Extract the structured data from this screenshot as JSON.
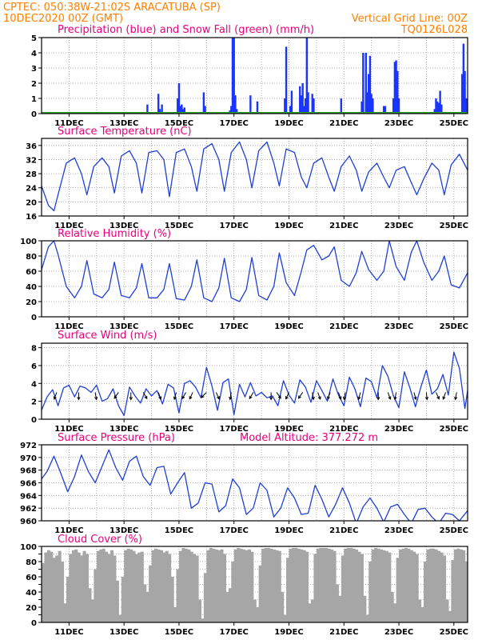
{
  "header": {
    "line1_left": "CPTEC:   050:38W-21:02S   ARACATUBA (SP)",
    "line2_left": "10DEC2020 00Z (GMT)",
    "line2_right": "Vertical Grid Line: 00Z",
    "line3_right": "TQ0126L028"
  },
  "colors": {
    "header": "#ff7f00",
    "title": "#e8007d",
    "precip": "#1a35ff",
    "snow": "#2ca02c",
    "line": "#1f3fd6",
    "wind_arrow": "#000000",
    "cloud": "#a6a6a6",
    "grid": "#9a9a9a"
  },
  "chart_data": [
    {
      "id": "precip",
      "type": "bar",
      "title": "Precipitation (blue) and Snow Fall (green) (mm/h)",
      "ylim": [
        0,
        5
      ],
      "yticks": [
        0,
        1,
        2,
        3,
        4,
        5
      ],
      "xlim": [
        10,
        25.5
      ],
      "xticks": [
        "11DEC",
        "13DEC",
        "15DEC",
        "17DEC",
        "19DEC",
        "21DEC",
        "23DEC",
        "25DEC"
      ],
      "grid": true,
      "series": [
        {
          "name": "Precipitation",
          "x": [
            13.85,
            14.25,
            14.3,
            14.38,
            14.95,
            15.0,
            15.05,
            15.1,
            15.15,
            15.2,
            15.9,
            15.95,
            16.85,
            16.9,
            16.95,
            17.0,
            17.05,
            17.1,
            17.6,
            17.85,
            18.85,
            18.9,
            19.05,
            19.1,
            19.4,
            19.45,
            19.5,
            19.55,
            19.6,
            19.65,
            19.7,
            19.85,
            19.9,
            20.9,
            21.65,
            21.7,
            21.8,
            21.85,
            21.9,
            21.95,
            22.0,
            22.05,
            22.45,
            22.5,
            22.8,
            22.85,
            22.9,
            22.95,
            23.0,
            24.3,
            24.35,
            24.4,
            24.45,
            24.5,
            24.55,
            25.3,
            25.35,
            25.4,
            25.45,
            25.5
          ],
          "values": [
            0.6,
            1.3,
            0.3,
            0.6,
            1.0,
            2.0,
            0.5,
            0.6,
            0.3,
            0.4,
            1.4,
            0.5,
            0.2,
            0.5,
            5.0,
            5.0,
            1.2,
            0.3,
            1.2,
            0.8,
            1.0,
            4.4,
            0.5,
            1.5,
            1.8,
            1.2,
            2.0,
            0.5,
            1.0,
            5.0,
            1.4,
            1.3,
            1.0,
            1.0,
            0.8,
            4.0,
            4.0,
            1.4,
            2.6,
            3.8,
            1.3,
            1.0,
            0.5,
            0.5,
            1.0,
            3.4,
            3.5,
            2.8,
            1.0,
            0.3,
            1.0,
            0.8,
            0.7,
            1.5,
            0.6,
            2.6,
            4.6,
            2.8,
            1.0,
            0.3
          ]
        },
        {
          "name": "Snow Fall",
          "constant": 0.05
        }
      ]
    },
    {
      "id": "temp",
      "type": "line",
      "title": "Surface Temperature (nC)",
      "ylim": [
        16,
        38
      ],
      "yticks": [
        16,
        20,
        24,
        28,
        32,
        36
      ],
      "xlim": [
        10,
        25.5
      ],
      "xticks": [
        "11DEC",
        "13DEC",
        "15DEC",
        "17DEC",
        "19DEC",
        "21DEC",
        "23DEC",
        "25DEC"
      ],
      "grid": true,
      "x": [
        10.0,
        10.25,
        10.45,
        10.6,
        10.9,
        11.2,
        11.45,
        11.65,
        11.9,
        12.2,
        12.45,
        12.65,
        12.9,
        13.2,
        13.45,
        13.65,
        13.9,
        14.2,
        14.45,
        14.65,
        14.9,
        15.2,
        15.45,
        15.65,
        15.9,
        16.2,
        16.45,
        16.65,
        16.9,
        17.2,
        17.45,
        17.65,
        17.9,
        18.2,
        18.45,
        18.65,
        18.9,
        19.2,
        19.45,
        19.65,
        19.9,
        20.2,
        20.45,
        20.65,
        20.9,
        21.2,
        21.45,
        21.65,
        21.9,
        22.2,
        22.45,
        22.65,
        22.9,
        23.2,
        23.45,
        23.65,
        23.9,
        24.2,
        24.45,
        24.65,
        24.9,
        25.2,
        25.5
      ],
      "values": [
        24.5,
        19.0,
        17.5,
        22.0,
        31.0,
        32.5,
        28.0,
        22.0,
        30.0,
        32.5,
        30.0,
        22.5,
        33.0,
        34.5,
        31.0,
        22.5,
        34.0,
        34.5,
        32.0,
        21.5,
        34.0,
        35.0,
        30.0,
        23.0,
        35.0,
        36.5,
        32.0,
        23.0,
        34.0,
        37.0,
        32.0,
        24.0,
        34.5,
        37.0,
        31.0,
        24.5,
        35.0,
        34.0,
        27.0,
        24.0,
        31.0,
        32.5,
        27.0,
        23.0,
        30.0,
        33.0,
        29.0,
        23.0,
        28.5,
        31.0,
        27.0,
        24.0,
        29.0,
        30.0,
        25.5,
        22.0,
        26.5,
        31.0,
        29.0,
        22.0,
        30.5,
        33.5,
        29.0
      ]
    },
    {
      "id": "rh",
      "type": "line",
      "title": "Relative Humidity (%)",
      "ylim": [
        0,
        100
      ],
      "yticks": [
        0,
        20,
        40,
        60,
        80,
        100
      ],
      "xlim": [
        10,
        25.5
      ],
      "xticks": [
        "11DEC",
        "13DEC",
        "15DEC",
        "17DEC",
        "19DEC",
        "21DEC",
        "23DEC",
        "25DEC"
      ],
      "grid": true,
      "x": [
        10.0,
        10.25,
        10.45,
        10.6,
        10.9,
        11.2,
        11.45,
        11.65,
        11.9,
        12.2,
        12.45,
        12.65,
        12.9,
        13.2,
        13.45,
        13.65,
        13.9,
        14.2,
        14.45,
        14.65,
        14.9,
        15.2,
        15.45,
        15.65,
        15.9,
        16.2,
        16.45,
        16.65,
        16.9,
        17.2,
        17.45,
        17.65,
        17.9,
        18.2,
        18.45,
        18.65,
        18.9,
        19.2,
        19.45,
        19.65,
        19.9,
        20.2,
        20.45,
        20.65,
        20.9,
        21.2,
        21.45,
        21.65,
        21.9,
        22.2,
        22.45,
        22.65,
        22.9,
        23.2,
        23.45,
        23.65,
        23.9,
        24.2,
        24.45,
        24.65,
        24.9,
        25.2,
        25.5
      ],
      "values": [
        62,
        92,
        100,
        82,
        40,
        25,
        40,
        74,
        30,
        25,
        36,
        72,
        28,
        25,
        38,
        70,
        25,
        25,
        36,
        70,
        24,
        22,
        40,
        75,
        25,
        20,
        38,
        77,
        25,
        20,
        36,
        78,
        28,
        22,
        40,
        84,
        45,
        28,
        60,
        88,
        94,
        75,
        80,
        92,
        48,
        40,
        58,
        86,
        62,
        48,
        60,
        100,
        66,
        48,
        85,
        100,
        72,
        48,
        60,
        80,
        42,
        38,
        58
      ]
    },
    {
      "id": "wind",
      "type": "line",
      "title": "Surface Wind (m/s)",
      "ylim": [
        0,
        8.5
      ],
      "yticks": [
        0,
        2,
        4,
        6,
        8
      ],
      "xlim": [
        10,
        25.5
      ],
      "xticks": [
        "11DEC",
        "13DEC",
        "15DEC",
        "17DEC",
        "19DEC",
        "21DEC",
        "23DEC",
        "25DEC"
      ],
      "grid": true,
      "x": [
        10.0,
        10.2,
        10.4,
        10.6,
        10.8,
        11.0,
        11.2,
        11.4,
        11.6,
        11.8,
        12.0,
        12.2,
        12.4,
        12.6,
        12.8,
        13.0,
        13.2,
        13.4,
        13.6,
        13.8,
        14.0,
        14.2,
        14.4,
        14.6,
        14.8,
        15.0,
        15.2,
        15.4,
        15.6,
        15.8,
        16.0,
        16.2,
        16.4,
        16.6,
        16.8,
        17.0,
        17.2,
        17.4,
        17.6,
        17.8,
        18.0,
        18.2,
        18.4,
        18.6,
        18.8,
        19.0,
        19.2,
        19.4,
        19.6,
        19.8,
        20.0,
        20.2,
        20.4,
        20.6,
        20.8,
        21.0,
        21.2,
        21.4,
        21.6,
        21.8,
        22.0,
        22.2,
        22.4,
        22.6,
        22.8,
        23.0,
        23.2,
        23.4,
        23.6,
        23.8,
        24.0,
        24.2,
        24.4,
        24.6,
        24.8,
        25.0,
        25.2,
        25.4,
        25.5
      ],
      "values": [
        1.0,
        2.5,
        3.3,
        1.5,
        3.5,
        3.8,
        2.5,
        3.7,
        3.5,
        3.0,
        3.8,
        2.0,
        2.3,
        3.4,
        1.5,
        0.4,
        3.6,
        2.6,
        1.8,
        3.4,
        2.6,
        3.2,
        1.7,
        3.9,
        3.5,
        0.7,
        4.0,
        4.3,
        3.6,
        2.4,
        5.8,
        3.7,
        1.0,
        4.1,
        4.5,
        0.5,
        3.9,
        2.5,
        4.1,
        2.6,
        3.0,
        2.4,
        2.6,
        1.5,
        4.3,
        2.7,
        1.8,
        4.4,
        3.6,
        1.9,
        4.3,
        3.2,
        2.0,
        4.5,
        2.7,
        1.5,
        4.7,
        3.4,
        1.4,
        4.6,
        4.2,
        2.4,
        6.0,
        4.8,
        2.6,
        1.3,
        5.3,
        3.5,
        1.4,
        3.6,
        5.5,
        2.8,
        3.4,
        5.0,
        2.7,
        7.5,
        5.7,
        1.2,
        3.2
      ],
      "arrows_x": [
        10.55,
        11.35,
        11.95,
        12.8,
        13.25,
        13.7,
        14.25,
        14.9,
        15.25,
        15.5,
        16.0,
        16.35,
        16.9,
        17.7,
        18.35,
        18.55,
        19.0,
        19.5,
        19.85,
        20.05,
        20.5,
        20.8,
        21.05,
        21.6,
        22.25,
        22.6,
        22.9,
        23.55,
        24.0,
        24.35,
        24.7,
        25.1,
        25.5
      ],
      "arrows_dir_deg": [
        200,
        180,
        170,
        215,
        180,
        150,
        160,
        195,
        210,
        205,
        225,
        155,
        190,
        210,
        180,
        145,
        205,
        215,
        170,
        160,
        200,
        160,
        190,
        195,
        180,
        160,
        190,
        165,
        175,
        155,
        200,
        190,
        170
      ]
    },
    {
      "id": "pressure",
      "type": "line",
      "title": "Surface Pressure (hPa)",
      "subtitle": "Model Altitude: 377.272 m",
      "ylim": [
        960,
        972
      ],
      "yticks": [
        960,
        962,
        964,
        966,
        968,
        970,
        972
      ],
      "xlim": [
        10,
        25.5
      ],
      "xticks": [
        "11DEC",
        "13DEC",
        "15DEC",
        "17DEC",
        "19DEC",
        "21DEC",
        "23DEC",
        "25DEC"
      ],
      "grid": true,
      "x": [
        10.0,
        10.2,
        10.45,
        10.7,
        10.95,
        11.2,
        11.45,
        11.7,
        11.95,
        12.2,
        12.45,
        12.7,
        12.95,
        13.2,
        13.45,
        13.7,
        13.95,
        14.2,
        14.45,
        14.7,
        14.95,
        15.2,
        15.45,
        15.7,
        15.95,
        16.2,
        16.45,
        16.7,
        16.95,
        17.2,
        17.45,
        17.7,
        17.95,
        18.2,
        18.45,
        18.7,
        18.95,
        19.2,
        19.45,
        19.7,
        19.95,
        20.2,
        20.45,
        20.7,
        20.95,
        21.2,
        21.45,
        21.7,
        21.95,
        22.2,
        22.45,
        22.7,
        22.95,
        23.2,
        23.45,
        23.7,
        23.95,
        24.2,
        24.45,
        24.7,
        24.95,
        25.2,
        25.5
      ],
      "values": [
        966.6,
        967.8,
        970.2,
        967.5,
        964.6,
        967.0,
        970.4,
        967.8,
        966.0,
        968.6,
        971.2,
        968.4,
        966.4,
        969.4,
        970.2,
        967.0,
        965.6,
        968.4,
        968.6,
        964.2,
        966.0,
        967.6,
        962.0,
        962.8,
        966.0,
        965.8,
        961.4,
        962.4,
        966.6,
        965.2,
        961.0,
        962.0,
        966.0,
        964.8,
        960.6,
        962.0,
        965.2,
        963.6,
        961.0,
        961.2,
        965.6,
        963.4,
        960.6,
        962.6,
        965.2,
        962.8,
        959.6,
        962.2,
        963.6,
        962.0,
        959.8,
        962.2,
        962.6,
        961.0,
        959.6,
        961.8,
        962.0,
        960.6,
        959.6,
        961.2,
        961.0,
        960.0,
        961.6
      ]
    },
    {
      "id": "cloud",
      "type": "area",
      "title": "Cloud Cover (%)",
      "ylim": [
        0,
        100
      ],
      "yticks": [
        0,
        10,
        20,
        30,
        40,
        50,
        60,
        70,
        80,
        90,
        100
      ],
      "ytick_labels": [
        "0",
        "",
        "20",
        "",
        "40",
        "",
        "60",
        "",
        "80",
        "",
        "100"
      ],
      "xlim": [
        10,
        25.5
      ],
      "xticks": [
        "11DEC",
        "13DEC",
        "15DEC",
        "17DEC",
        "19DEC",
        "21DEC",
        "23DEC",
        "25DEC"
      ],
      "grid": true,
      "x": [
        10.0,
        10.1,
        10.2,
        10.3,
        10.4,
        10.5,
        10.6,
        10.7,
        10.8,
        10.9,
        11.0,
        11.1,
        11.2,
        11.3,
        11.4,
        11.5,
        11.6,
        11.7,
        11.8,
        11.9,
        12.0,
        12.1,
        12.2,
        12.3,
        12.4,
        12.5,
        12.6,
        12.7,
        12.8,
        12.9,
        13.0,
        13.1,
        13.2,
        13.3,
        13.4,
        13.5,
        13.6,
        13.7,
        13.8,
        13.9,
        14.0,
        14.1,
        14.2,
        14.3,
        14.4,
        14.5,
        14.6,
        14.7,
        14.8,
        14.9,
        15.0,
        15.1,
        15.2,
        15.3,
        15.4,
        15.5,
        15.6,
        15.7,
        15.8,
        15.9,
        16.0,
        16.1,
        16.2,
        16.3,
        16.4,
        16.5,
        16.6,
        16.7,
        16.8,
        16.9,
        17.0,
        17.1,
        17.2,
        17.3,
        17.4,
        17.5,
        17.6,
        17.7,
        17.8,
        17.9,
        18.0,
        18.1,
        18.2,
        18.3,
        18.4,
        18.5,
        18.6,
        18.7,
        18.8,
        18.9,
        19.0,
        19.1,
        19.2,
        19.3,
        19.4,
        19.5,
        19.6,
        19.7,
        19.8,
        19.9,
        20.0,
        20.1,
        20.2,
        20.3,
        20.4,
        20.5,
        20.6,
        20.7,
        20.8,
        20.9,
        21.0,
        21.1,
        21.2,
        21.3,
        21.4,
        21.5,
        21.6,
        21.7,
        21.8,
        21.9,
        22.0,
        22.1,
        22.2,
        22.3,
        22.4,
        22.5,
        22.6,
        22.7,
        22.8,
        22.9,
        23.0,
        23.1,
        23.2,
        23.3,
        23.4,
        23.5,
        23.6,
        23.7,
        23.8,
        23.9,
        24.0,
        24.1,
        24.2,
        24.3,
        24.4,
        24.5,
        24.6,
        24.7,
        24.8,
        24.9,
        25.0,
        25.1,
        25.2,
        25.3,
        25.4,
        25.5
      ],
      "values": [
        78,
        92,
        95,
        93,
        85,
        88,
        94,
        80,
        25,
        60,
        90,
        95,
        96,
        92,
        88,
        94,
        90,
        45,
        30,
        70,
        94,
        96,
        97,
        93,
        90,
        95,
        88,
        55,
        10,
        60,
        95,
        97,
        96,
        94,
        90,
        92,
        93,
        50,
        40,
        75,
        95,
        97,
        96,
        95,
        92,
        94,
        90,
        60,
        20,
        70,
        94,
        98,
        97,
        96,
        93,
        90,
        88,
        30,
        5,
        65,
        95,
        98,
        97,
        96,
        95,
        96,
        90,
        40,
        45,
        80,
        96,
        98,
        97,
        96,
        95,
        96,
        93,
        30,
        20,
        75,
        97,
        98,
        98,
        97,
        96,
        95,
        94,
        40,
        10,
        85,
        97,
        98,
        98,
        97,
        96,
        95,
        93,
        25,
        30,
        90,
        97,
        98,
        98,
        98,
        97,
        96,
        94,
        50,
        35,
        88,
        97,
        98,
        98,
        97,
        96,
        93,
        90,
        35,
        10,
        80,
        96,
        98,
        97,
        96,
        95,
        94,
        92,
        40,
        25,
        85,
        96,
        97,
        98,
        97,
        95,
        93,
        90,
        30,
        20,
        80,
        96,
        97,
        97,
        96,
        94,
        92,
        88,
        30,
        15,
        82,
        96,
        97,
        96,
        95,
        80,
        85
      ]
    }
  ]
}
